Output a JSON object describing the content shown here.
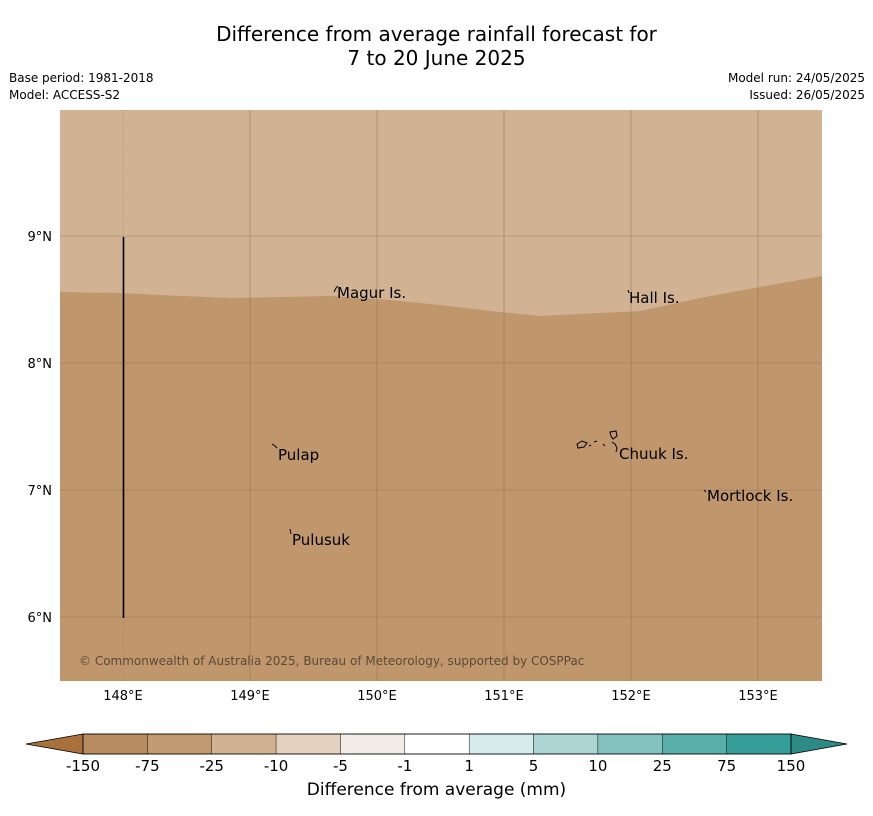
{
  "title": {
    "line1": "Difference from average rainfall forecast for",
    "line2": "7 to 20 June 2025"
  },
  "meta": {
    "base_period": "Base period: 1981-2018",
    "model": "Model: ACCESS-S2",
    "model_run": "Model run: 24/05/2025",
    "issued": "Issued: 26/05/2025"
  },
  "map": {
    "lon_labels": [
      "148°E",
      "149°E",
      "150°E",
      "151°E",
      "152°E",
      "153°E"
    ],
    "lat_labels": [
      "9°N",
      "8°N",
      "7°N",
      "6°N"
    ],
    "places": [
      {
        "name": "Magur Is.",
        "id": "magur"
      },
      {
        "name": "Hall Is.",
        "id": "hall"
      },
      {
        "name": "Pulap",
        "id": "pulap"
      },
      {
        "name": "Chuuk Is.",
        "id": "chuuk"
      },
      {
        "name": "Mortlock Is.",
        "id": "mortlock"
      },
      {
        "name": "Pulusuk",
        "id": "pulusuk"
      }
    ],
    "copyright": "© Commonwealth of Australia 2025, Bureau of Meteorology, supported by COSPPac",
    "colors": {
      "north_band": "#d1b293",
      "south_band": "#c0966c"
    }
  },
  "colorbar": {
    "ticks": [
      "-150",
      "-75",
      "-25",
      "-10",
      "-5",
      "-1",
      "1",
      "5",
      "10",
      "25",
      "75",
      "150"
    ],
    "colors": [
      "#a8713c",
      "#b88c61",
      "#c29a71",
      "#d1b293",
      "#e4d2c1",
      "#f1ede6",
      "#ffffff",
      "#d6ecea",
      "#acd5d3",
      "#83c2bf",
      "#5bafab",
      "#359e99",
      "#2d8a85"
    ],
    "label": "Difference from average (mm)"
  }
}
